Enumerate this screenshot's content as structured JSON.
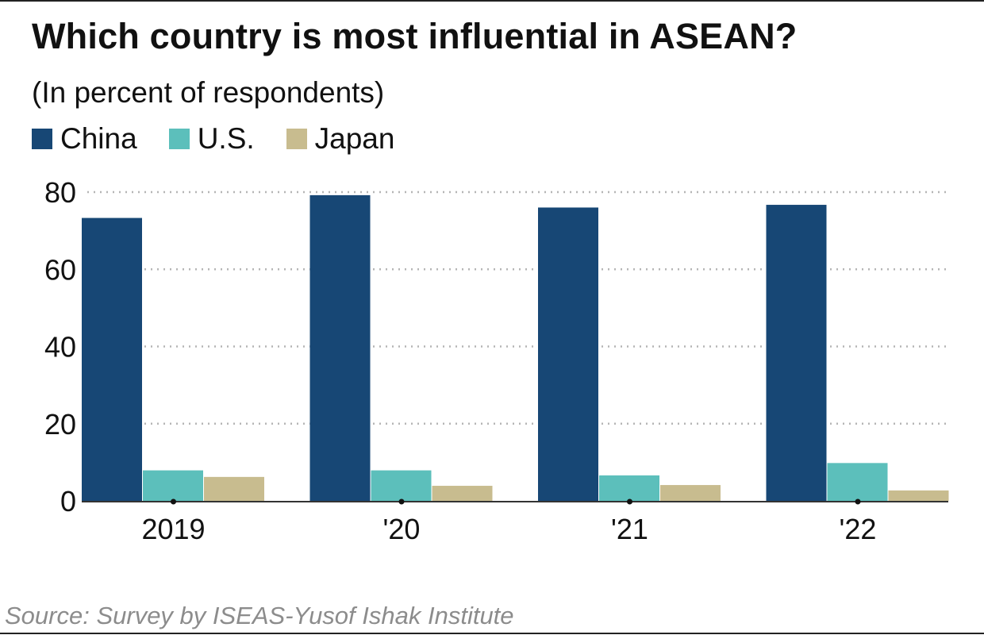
{
  "title": "Which country is most influential in ASEAN?",
  "subtitle": "(In percent of respondents)",
  "source": "Source: Survey by ISEAS-Yusof Ishak Institute",
  "colors": {
    "China": "#174775",
    "U.S.": "#5cbfbb",
    "Japan": "#c8bc8f",
    "grid": "#b5b5b5",
    "axis": "#333333"
  },
  "chart_data": {
    "type": "bar",
    "title": "Which country is most influential in ASEAN?",
    "subtitle": "(In percent of respondents)",
    "xlabel": "",
    "ylabel": "",
    "categories": [
      "2019",
      "'20",
      "'21",
      "'22"
    ],
    "series": [
      {
        "name": "China",
        "values": [
          73.3,
          79.2,
          76.0,
          76.7
        ]
      },
      {
        "name": "U.S.",
        "values": [
          7.9,
          7.9,
          6.6,
          9.8
        ]
      },
      {
        "name": "Japan",
        "values": [
          6.2,
          3.9,
          4.1,
          2.7
        ]
      }
    ],
    "ylim": [
      0,
      80
    ],
    "yticks": [
      0,
      20,
      40,
      60,
      80
    ],
    "grid": true,
    "legend": "top-left"
  }
}
